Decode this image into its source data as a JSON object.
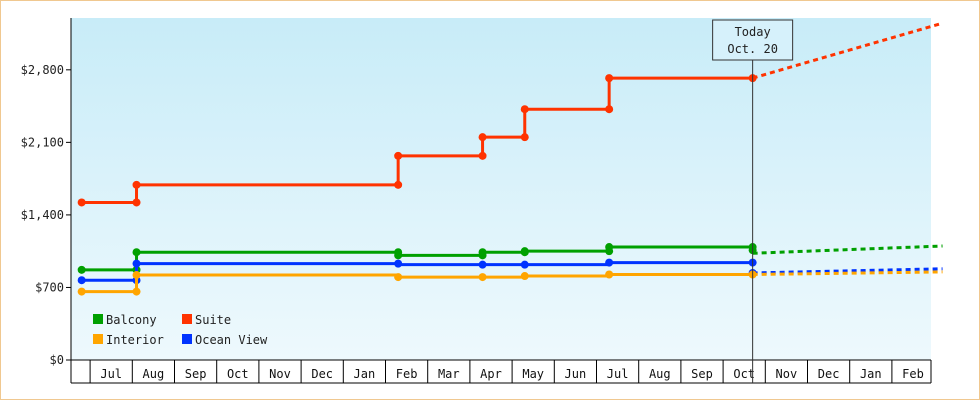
{
  "chart_data": {
    "type": "line",
    "step": true,
    "y_ticks": [
      "$0",
      "$700",
      "$1,400",
      "$2,100",
      "$2,800"
    ],
    "y_tick_values": [
      0,
      700,
      1400,
      2100,
      2800
    ],
    "ylim": [
      0,
      3300
    ],
    "x_months": [
      "Jun",
      "Jul",
      "Aug",
      "Sep",
      "Oct",
      "Nov",
      "Dec",
      "Jan",
      "Feb",
      "Mar",
      "Apr",
      "May",
      "Jun",
      "Jul",
      "Aug",
      "Sep",
      "Oct",
      "Nov",
      "Dec",
      "Jan",
      "Feb"
    ],
    "x_month_labels": [
      "",
      "Jul",
      "Aug",
      "Sep",
      "Oct",
      "Nov",
      "Dec",
      "Jan",
      "Feb",
      "Mar",
      "Apr",
      "May",
      "Jun",
      "Jul",
      "Aug",
      "Sep",
      "Oct",
      "Nov",
      "Dec",
      "Jan",
      "Feb"
    ],
    "today": {
      "line1": "Today",
      "line2": "Oct. 20",
      "x": 16.2
    },
    "grid": false,
    "legend_placement": "bottom-left",
    "legend": [
      {
        "name": "Balcony",
        "color": "#00a000"
      },
      {
        "name": "Suite",
        "color": "#ff3300"
      },
      {
        "name": "Interior",
        "color": "#ffa500"
      },
      {
        "name": "Ocean View",
        "color": "#0033ff"
      }
    ],
    "series": [
      {
        "name": "Suite",
        "color": "#ff3300",
        "points": [
          [
            0.3,
            1520
          ],
          [
            1.6,
            1520
          ],
          [
            1.6,
            1690
          ],
          [
            7.8,
            1690
          ],
          [
            7.8,
            1970
          ],
          [
            9.8,
            1970
          ],
          [
            9.8,
            2150
          ],
          [
            10.8,
            2150
          ],
          [
            10.8,
            2420
          ],
          [
            12.8,
            2420
          ],
          [
            12.8,
            2720
          ],
          [
            16.2,
            2720
          ]
        ],
        "markers": [
          [
            0.3,
            1520
          ],
          [
            1.6,
            1520
          ],
          [
            1.6,
            1690
          ],
          [
            7.8,
            1690
          ],
          [
            7.8,
            1970
          ],
          [
            9.8,
            1970
          ],
          [
            9.8,
            2150
          ],
          [
            10.8,
            2150
          ],
          [
            10.8,
            2420
          ],
          [
            12.8,
            2420
          ],
          [
            12.8,
            2720
          ],
          [
            16.2,
            2720
          ]
        ],
        "forecast": [
          [
            16.2,
            2720
          ],
          [
            20.7,
            3250
          ]
        ]
      },
      {
        "name": "Balcony",
        "color": "#00a000",
        "points": [
          [
            0.3,
            870
          ],
          [
            1.6,
            870
          ],
          [
            1.6,
            1040
          ],
          [
            7.8,
            1040
          ],
          [
            7.8,
            1010
          ],
          [
            9.8,
            1010
          ],
          [
            9.8,
            1040
          ],
          [
            10.8,
            1040
          ],
          [
            10.8,
            1050
          ],
          [
            12.8,
            1050
          ],
          [
            12.8,
            1090
          ],
          [
            16.2,
            1090
          ]
        ],
        "markers": [
          [
            0.3,
            870
          ],
          [
            1.6,
            870
          ],
          [
            1.6,
            1040
          ],
          [
            7.8,
            1040
          ],
          [
            7.8,
            1010
          ],
          [
            9.8,
            1010
          ],
          [
            9.8,
            1040
          ],
          [
            10.8,
            1040
          ],
          [
            10.8,
            1050
          ],
          [
            12.8,
            1050
          ],
          [
            12.8,
            1090
          ],
          [
            16.2,
            1090
          ],
          [
            16.2,
            1060
          ]
        ],
        "forecast": [
          [
            16.2,
            1030
          ],
          [
            20.7,
            1100
          ]
        ]
      },
      {
        "name": "Ocean View",
        "color": "#0033ff",
        "points": [
          [
            0.3,
            770
          ],
          [
            1.6,
            770
          ],
          [
            1.6,
            930
          ],
          [
            7.8,
            930
          ],
          [
            7.8,
            920
          ],
          [
            9.8,
            920
          ],
          [
            9.8,
            920
          ],
          [
            10.8,
            920
          ],
          [
            10.8,
            920
          ],
          [
            12.8,
            920
          ],
          [
            12.8,
            940
          ],
          [
            16.2,
            940
          ]
        ],
        "markers": [
          [
            0.3,
            770
          ],
          [
            1.6,
            770
          ],
          [
            1.6,
            930
          ],
          [
            7.8,
            930
          ],
          [
            9.8,
            920
          ],
          [
            10.8,
            920
          ],
          [
            12.8,
            940
          ],
          [
            16.2,
            940
          ],
          [
            16.2,
            840
          ]
        ],
        "forecast": [
          [
            16.2,
            840
          ],
          [
            20.7,
            880
          ]
        ]
      },
      {
        "name": "Interior",
        "color": "#ffa500",
        "points": [
          [
            0.3,
            660
          ],
          [
            1.6,
            660
          ],
          [
            1.6,
            820
          ],
          [
            7.8,
            820
          ],
          [
            7.8,
            800
          ],
          [
            9.8,
            800
          ],
          [
            9.8,
            800
          ],
          [
            10.8,
            800
          ],
          [
            10.8,
            810
          ],
          [
            12.8,
            810
          ],
          [
            12.8,
            825
          ],
          [
            16.2,
            825
          ]
        ],
        "markers": [
          [
            0.3,
            660
          ],
          [
            1.6,
            660
          ],
          [
            1.6,
            820
          ],
          [
            7.8,
            800
          ],
          [
            9.8,
            800
          ],
          [
            10.8,
            810
          ],
          [
            12.8,
            825
          ],
          [
            16.2,
            825
          ]
        ],
        "forecast": [
          [
            16.2,
            825
          ],
          [
            20.7,
            850
          ]
        ]
      }
    ]
  }
}
